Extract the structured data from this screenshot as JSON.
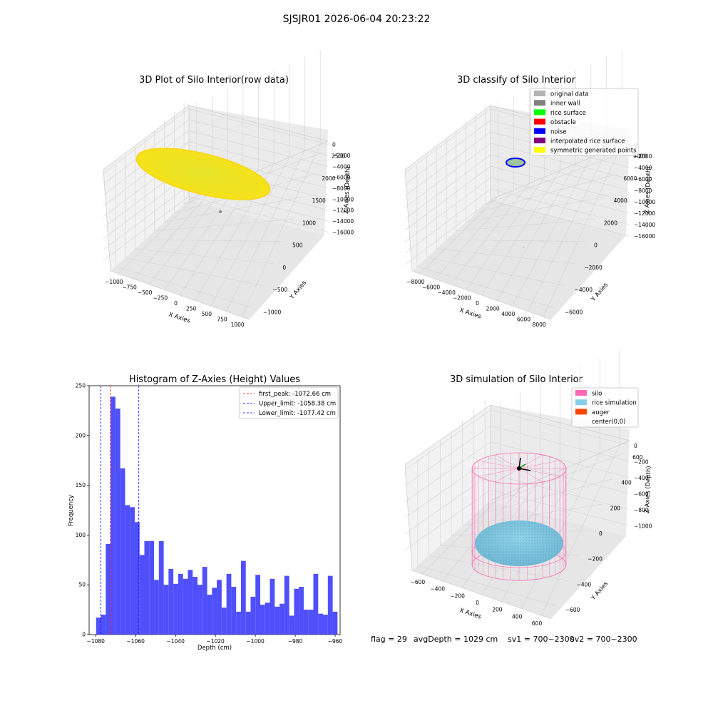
{
  "figure": {
    "suptitle": "SJSJR01 2026-06-04 20:23:22",
    "status": {
      "flag": "flag = 29",
      "avg_depth": "avgDepth = 1029 cm",
      "sv1": "sv1 = 700~2300",
      "sv2": "sv2 = 700~2300"
    }
  },
  "colors": {
    "yellow_points": "#f0e81a",
    "hist_bar": "#4f4ffb",
    "first_peak_line": "#ff0000",
    "limit_line": "#0000ff",
    "silo_wire": "#ff69b4",
    "rice_sim": "#87ceeb",
    "pane_left": "#f2f2f2",
    "pane_right": "#ebebeb",
    "pane_floor": "#e6e6e6",
    "grid": "#d2d2d2"
  },
  "chart_data": [
    {
      "type": "scatter3d",
      "title": "3D Plot of Silo Interior(row data)",
      "xlabel": "X Axies",
      "ylabel": "Y Axies",
      "zlabel": "Z Axies (Depth)",
      "x_ticks": [
        "−1000",
        "−750",
        "−500",
        "−250",
        "0",
        "250",
        "500",
        "750",
        "1000"
      ],
      "y_ticks": [
        "−1000",
        "−500",
        "0",
        "500",
        "1000",
        "1500",
        "2000",
        "2500"
      ],
      "z_ticks": [
        "0",
        "−2000",
        "−4000",
        "−6000",
        "−8000",
        "−10000",
        "−12000",
        "−14000",
        "−16000"
      ],
      "xlim": [
        -1000,
        1000
      ],
      "ylim": [
        -1000,
        2500
      ],
      "zlim": [
        -16000,
        0
      ],
      "note_series": [
        {
          "desc": "point cloud",
          "z_approx": -3000
        },
        {
          "desc": "single outlier",
          "z_approx": -12500
        }
      ]
    },
    {
      "type": "scatter3d",
      "title": "3D classify of Silo Interior",
      "xlabel": "X Axies",
      "ylabel": "Y Axies",
      "zlabel": "Z Axies (Depth)",
      "x_ticks": [
        "−8000",
        "−6000",
        "−4000",
        "−2000",
        "0",
        "2000",
        "4000",
        "6000",
        "8000"
      ],
      "y_ticks": [
        "−6000",
        "−4000",
        "−2000",
        "0",
        "2000",
        "4000",
        "6000",
        "8000"
      ],
      "z_ticks": [
        "0",
        "−2000",
        "−4000",
        "−6000",
        "−8000",
        "−10000",
        "−12000",
        "−14000",
        "−16000"
      ],
      "xlim": [
        -8000,
        8000
      ],
      "ylim": [
        -6000,
        8000
      ],
      "zlim": [
        -16000,
        0
      ],
      "legend_position": "top-right",
      "legend": [
        {
          "name": "original data",
          "color": "#b4b4b4"
        },
        {
          "name": "inner wall",
          "color": "#808080"
        },
        {
          "name": "rice surface",
          "color": "#00ff00"
        },
        {
          "name": "obstacle",
          "color": "#ff0000"
        },
        {
          "name": "noise",
          "color": "#0000ff"
        },
        {
          "name": "interpolated rice surface",
          "color": "#800080"
        },
        {
          "name": "symmetric generated points",
          "color": "#ffff00"
        }
      ]
    },
    {
      "type": "bar",
      "title": "Histogram of Z-Axies (Height) Values",
      "xlabel": "Depth (cm)",
      "ylabel": "Frequency",
      "x_ticks": [
        -1080,
        -1060,
        -1040,
        -1020,
        -1000,
        -980,
        -960
      ],
      "x_tick_labels": [
        "−1080",
        "−1060",
        "−1040",
        "−1020",
        "−1000",
        "−980",
        "−960"
      ],
      "y_ticks": [
        0,
        50,
        100,
        150,
        200,
        250
      ],
      "xlim": [
        -1083.3,
        -957.5
      ],
      "ylim": [
        0,
        250
      ],
      "bin_start": -1079.8,
      "bin_width": 2.42,
      "values": [
        17,
        20,
        91,
        239,
        227,
        167,
        130,
        128,
        113,
        80,
        94,
        94,
        55,
        94,
        50,
        66,
        51,
        61,
        56,
        65,
        58,
        50,
        68,
        40,
        47,
        55,
        27,
        61,
        48,
        23,
        74,
        23,
        38,
        60,
        30,
        32,
        56,
        28,
        31,
        59,
        19,
        46,
        48,
        25,
        25,
        61,
        21,
        20,
        59,
        23
      ],
      "vlines": [
        {
          "label": "first_peak: -1072.66 cm",
          "x": -1072.66,
          "color": "#ff0000"
        },
        {
          "label": "Upper_limit: -1058.38 cm",
          "x": -1058.38,
          "color": "#0000ff"
        },
        {
          "label": "Lower_limit: -1077.42 cm",
          "x": -1077.42,
          "color": "#0000ff"
        }
      ],
      "legend_position": "top-right"
    },
    {
      "type": "surface3d",
      "title": "3D simulation of Silo Interior",
      "xlabel": "X Axies",
      "ylabel": "Y Axies",
      "zlabel": "Z Axies (Depth)",
      "x_ticks": [
        "−600",
        "−400",
        "−200",
        "0",
        "200",
        "400",
        "600"
      ],
      "y_ticks": [
        "−600",
        "−400",
        "−200",
        "0",
        "200",
        "400",
        "600"
      ],
      "z_ticks": [
        "0",
        "−200",
        "−400",
        "−600",
        "−800",
        "−1000"
      ],
      "xlim": [
        -600,
        600
      ],
      "ylim": [
        -600,
        600
      ],
      "zlim": [
        -1100,
        100
      ],
      "legend_position": "top-right",
      "legend": [
        {
          "name": "silo",
          "color": "#ff69b4"
        },
        {
          "name": "rice simulation",
          "color": "#87ceeb"
        },
        {
          "name": "auger",
          "color": "#ff4500"
        },
        {
          "name": "center(0,0)",
          "color": ""
        }
      ]
    }
  ]
}
